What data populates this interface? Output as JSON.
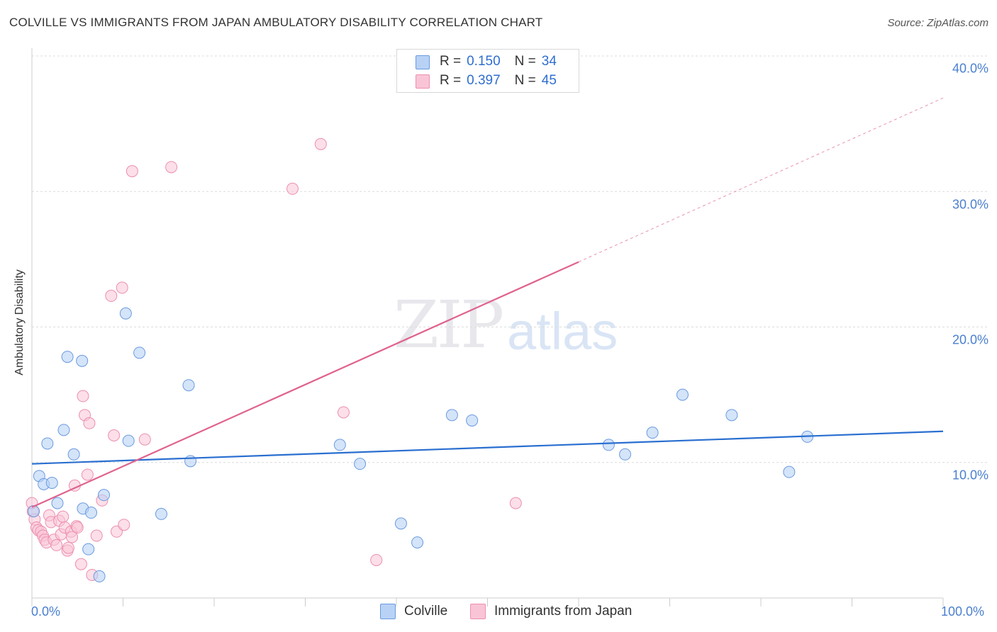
{
  "header": {
    "title": "COLVILLE VS IMMIGRANTS FROM JAPAN AMBULATORY DISABILITY CORRELATION CHART",
    "source": "Source: ZipAtlas.com"
  },
  "watermark": {
    "zip": "ZIP",
    "atlas": "atlas"
  },
  "legend": {
    "series1": {
      "r_label": "R =",
      "r_value": "0.150",
      "n_label": "N =",
      "n_value": "34"
    },
    "series2": {
      "r_label": "R =",
      "r_value": "0.397",
      "n_label": "N =",
      "n_value": "45"
    }
  },
  "bottom_legend": {
    "series1": "Colville",
    "series2": "Immigrants from Japan"
  },
  "colors": {
    "blue_fill": "#b8d2f5",
    "blue_stroke": "#6a9ae0",
    "blue_line": "#2a6fd0",
    "pink_fill": "#f9c5d6",
    "pink_stroke": "#ec8fb0",
    "pink_line": "#e0628e"
  },
  "chart_data": {
    "type": "scatter",
    "title": "COLVILLE VS IMMIGRANTS FROM JAPAN AMBULATORY DISABILITY CORRELATION CHART",
    "xlabel": "",
    "ylabel": "Ambulatory Disability",
    "xlim": [
      0,
      100
    ],
    "ylim": [
      0,
      40
    ],
    "x_tick_labels": [
      "0.0%",
      "100.0%"
    ],
    "y_ticks": [
      10,
      20,
      30,
      40
    ],
    "y_tick_labels": [
      "10.0%",
      "20.0%",
      "30.0%",
      "40.0%"
    ],
    "grid": true,
    "series": [
      {
        "name": "Colville",
        "color": "#b8d2f5",
        "r": 0.15,
        "n": 34,
        "trend": {
          "x0": 0,
          "y0": 9.9,
          "x1": 100,
          "y1": 12.3
        },
        "points": [
          [
            0.2,
            6.4
          ],
          [
            0.8,
            9.0
          ],
          [
            1.3,
            8.4
          ],
          [
            1.7,
            11.4
          ],
          [
            2.2,
            8.5
          ],
          [
            2.8,
            7.0
          ],
          [
            3.5,
            12.4
          ],
          [
            3.9,
            17.8
          ],
          [
            4.6,
            10.6
          ],
          [
            5.5,
            17.5
          ],
          [
            5.6,
            6.6
          ],
          [
            6.2,
            3.6
          ],
          [
            6.5,
            6.3
          ],
          [
            7.4,
            1.6
          ],
          [
            7.9,
            7.6
          ],
          [
            10.3,
            21.0
          ],
          [
            10.6,
            11.6
          ],
          [
            11.8,
            18.1
          ],
          [
            14.2,
            6.2
          ],
          [
            17.2,
            15.7
          ],
          [
            17.4,
            10.1
          ],
          [
            33.8,
            11.3
          ],
          [
            36.0,
            9.9
          ],
          [
            40.5,
            5.5
          ],
          [
            42.3,
            4.1
          ],
          [
            46.1,
            13.5
          ],
          [
            48.3,
            13.1
          ],
          [
            63.3,
            11.3
          ],
          [
            65.1,
            10.6
          ],
          [
            68.1,
            12.2
          ],
          [
            71.4,
            15.0
          ],
          [
            76.8,
            13.5
          ],
          [
            83.1,
            9.3
          ],
          [
            85.1,
            11.9
          ]
        ]
      },
      {
        "name": "Immigrants from Japan",
        "color": "#f9c5d6",
        "r": 0.397,
        "n": 45,
        "trend": {
          "x0": 0,
          "y0": 6.7,
          "x1": 60,
          "y1": 24.8,
          "dashed_to_x": 100,
          "dashed_to_y": 36.9
        },
        "points": [
          [
            0.1,
            6.4
          ],
          [
            0.3,
            5.8
          ],
          [
            0.5,
            5.2
          ],
          [
            0.7,
            5.0
          ],
          [
            1.0,
            4.9
          ],
          [
            1.2,
            4.6
          ],
          [
            1.4,
            4.3
          ],
          [
            1.6,
            4.1
          ],
          [
            1.9,
            6.1
          ],
          [
            2.1,
            5.6
          ],
          [
            2.4,
            4.3
          ],
          [
            2.7,
            3.9
          ],
          [
            3.0,
            5.7
          ],
          [
            3.2,
            4.7
          ],
          [
            3.4,
            6.0
          ],
          [
            3.6,
            5.2
          ],
          [
            3.9,
            3.5
          ],
          [
            4.0,
            3.7
          ],
          [
            4.3,
            4.9
          ],
          [
            4.4,
            4.5
          ],
          [
            4.7,
            8.3
          ],
          [
            4.9,
            5.3
          ],
          [
            5.0,
            5.2
          ],
          [
            5.4,
            2.5
          ],
          [
            5.6,
            14.9
          ],
          [
            5.8,
            13.5
          ],
          [
            6.1,
            9.1
          ],
          [
            6.3,
            12.9
          ],
          [
            6.6,
            1.7
          ],
          [
            7.1,
            4.6
          ],
          [
            7.7,
            7.2
          ],
          [
            8.7,
            22.3
          ],
          [
            9.0,
            12.0
          ],
          [
            9.3,
            4.9
          ],
          [
            9.9,
            22.9
          ],
          [
            10.1,
            5.4
          ],
          [
            11.0,
            31.5
          ],
          [
            12.4,
            11.7
          ],
          [
            15.3,
            31.8
          ],
          [
            28.6,
            30.2
          ],
          [
            31.7,
            33.5
          ],
          [
            34.2,
            13.7
          ],
          [
            37.8,
            2.8
          ],
          [
            53.1,
            7.0
          ],
          [
            0.0,
            7.0
          ]
        ]
      }
    ]
  }
}
